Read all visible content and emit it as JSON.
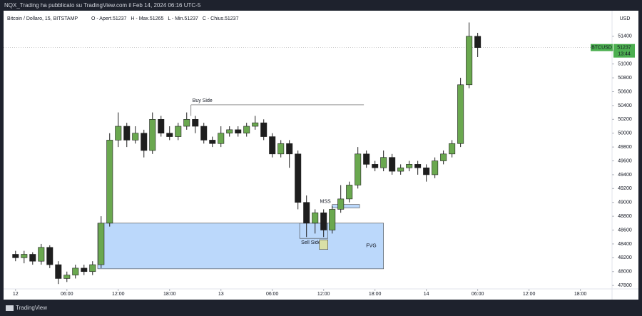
{
  "header": {
    "publisher": "NQX_Trading ha pubblicato su TradingView.com il Feb 14, 2024 06:16 UTC-5",
    "logo": "TradingView"
  },
  "chart_data": {
    "type": "candlestick",
    "symbol": "Bitcoin / Dollaro, 15, BITSTAMP",
    "ohlc_labels": [
      "O - Apert.51237",
      "H - Max.51265",
      "L - Min.51237",
      "C - Chius.51237"
    ],
    "currency": "USD",
    "last_price": {
      "ticker": "BTCUSD",
      "value": 51237,
      "countdown": "13:44"
    },
    "x": [
      0,
      1,
      2,
      3,
      4,
      5,
      6,
      7,
      8,
      9,
      10,
      11,
      12,
      13,
      14,
      15,
      16,
      17,
      18,
      19,
      20,
      21,
      22,
      23,
      24,
      25,
      26,
      27,
      28,
      29,
      30,
      31,
      32,
      33,
      34,
      35,
      36,
      37,
      38,
      39,
      40,
      41,
      42,
      43,
      44,
      45,
      46,
      47,
      48,
      49,
      50,
      51,
      52,
      53,
      54
    ],
    "open": [
      48250,
      48200,
      48250,
      48150,
      48350,
      48100,
      47900,
      47950,
      48050,
      48000,
      48100,
      48700,
      49900,
      50100,
      49900,
      50000,
      49750,
      50200,
      50000,
      49950,
      50100,
      50200,
      50100,
      49900,
      49850,
      50000,
      50050,
      50000,
      50100,
      50150,
      49950,
      49700,
      49850,
      49700,
      49000,
      48700,
      48850,
      48600,
      48900,
      49050,
      49250,
      49700,
      49550,
      49500,
      49650,
      49450,
      49500,
      49550,
      49500,
      49400,
      49600,
      49700,
      49850,
      50700,
      51400
    ],
    "high": [
      48300,
      48300,
      48280,
      48400,
      48380,
      48150,
      48000,
      48100,
      48100,
      48150,
      48800,
      50000,
      50300,
      50150,
      50100,
      50050,
      50300,
      50250,
      50100,
      50150,
      50300,
      50250,
      50150,
      49950,
      50100,
      50100,
      50100,
      50150,
      50250,
      50200,
      50000,
      49900,
      49900,
      49750,
      49100,
      48900,
      48900,
      48950,
      49250,
      49300,
      49800,
      49750,
      49600,
      49750,
      49700,
      49550,
      49600,
      49600,
      49550,
      49650,
      49750,
      49900,
      50800,
      51600,
      51450
    ],
    "low": [
      48150,
      48120,
      48100,
      48100,
      48050,
      47820,
      47850,
      47900,
      47950,
      47950,
      48050,
      48650,
      49800,
      49800,
      49850,
      49650,
      49700,
      49950,
      49900,
      49900,
      50050,
      50000,
      49850,
      49800,
      49800,
      49950,
      49950,
      49950,
      50050,
      49900,
      49650,
      49650,
      49500,
      48900,
      48500,
      48550,
      48500,
      48550,
      48850,
      49000,
      49200,
      49500,
      49450,
      49450,
      49400,
      49400,
      49450,
      49400,
      49300,
      49350,
      49550,
      49650,
      49800,
      50650,
      51100
    ],
    "close": [
      48200,
      48250,
      48150,
      48350,
      48100,
      47900,
      47950,
      48050,
      48000,
      48100,
      48700,
      49900,
      50100,
      49900,
      50000,
      49750,
      50200,
      50000,
      49950,
      50100,
      50200,
      50100,
      49900,
      49850,
      50000,
      50050,
      50000,
      50100,
      50150,
      49950,
      49700,
      49850,
      49700,
      49000,
      48700,
      48850,
      48600,
      48900,
      49050,
      49250,
      49700,
      49550,
      49500,
      49650,
      49450,
      49500,
      49550,
      49500,
      49400,
      49600,
      49700,
      49850,
      50700,
      51400,
      51237
    ],
    "up_color": "#6aa84f",
    "down_color": "#1e1e1e",
    "xlim": [
      -1.4,
      69.7
    ],
    "ylim": [
      47750,
      51770
    ],
    "xticks": [
      {
        "value": 0,
        "label": "12"
      },
      {
        "value": 6,
        "label": "06:00"
      },
      {
        "value": 12,
        "label": "12:00"
      },
      {
        "value": 18,
        "label": "18:00"
      },
      {
        "value": 24,
        "label": "13"
      },
      {
        "value": 30,
        "label": "06:00"
      },
      {
        "value": 36,
        "label": "12:00"
      },
      {
        "value": 42,
        "label": "18:00"
      },
      {
        "value": 48,
        "label": "14"
      },
      {
        "value": 54,
        "label": "06:00"
      },
      {
        "value": 60,
        "label": "12:00"
      },
      {
        "value": 66,
        "label": "18:00"
      }
    ],
    "yticks": [
      47800,
      48000,
      48200,
      48400,
      48600,
      48800,
      49000,
      49200,
      49400,
      49600,
      49800,
      50000,
      50200,
      50400,
      50600,
      50800,
      51000,
      51200,
      51400
    ],
    "zones": [
      {
        "label": "FVG",
        "x": [
          9.6,
          43.0
        ],
        "y": [
          48040,
          48700
        ],
        "color": "#bbd8fb"
      },
      {
        "label": "MSS",
        "x": [
          37.0,
          40.2
        ],
        "y": [
          48920,
          48970
        ],
        "color": "#bbd8fb"
      },
      {
        "label": "Sell Side",
        "x": [
          33.2,
          36.5
        ],
        "y": [
          48480,
          48700
        ],
        "color": "none"
      },
      {
        "x": [
          35.5,
          36.5
        ],
        "y": [
          48320,
          48460
        ],
        "color": "#d9e0a6"
      }
    ],
    "lines": [
      {
        "label": "Buy Side",
        "x": [
          20.5,
          40.7
        ],
        "y": 50410,
        "stem": 50250
      }
    ]
  }
}
